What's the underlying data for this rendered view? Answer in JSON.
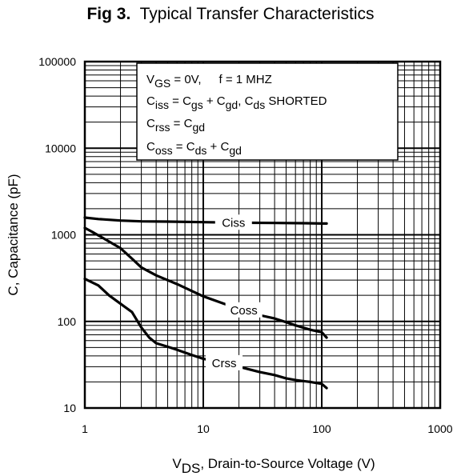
{
  "title_prefix": "Fig 3.",
  "title_text": "Typical Transfer Characteristics",
  "chart_data": {
    "type": "line",
    "x_scale": "log",
    "y_scale": "log",
    "xlim": [
      1,
      1000
    ],
    "ylim": [
      10,
      100000
    ],
    "x_ticks": [
      "1",
      "10",
      "100",
      "1000"
    ],
    "y_ticks": [
      "10",
      "100",
      "1000",
      "10000",
      "100000"
    ],
    "xlabel": {
      "pre": "V",
      "sub": "DS",
      "post": ", Drain-to-Source Voltage (V)"
    },
    "ylabel": "C, Capacitance (pF)",
    "grid": true,
    "legend_box": [
      [
        [
          "V",
          "n"
        ],
        [
          "GS",
          "s"
        ],
        [
          " = 0V,",
          "n"
        ],
        [
          "f = 1 MHZ",
          "n"
        ]
      ],
      [
        [
          "C",
          "n"
        ],
        [
          "iss",
          "s"
        ],
        [
          " = C",
          "n"
        ],
        [
          "gs",
          "s"
        ],
        [
          " + C",
          "n"
        ],
        [
          "gd",
          "s"
        ],
        [
          ", ",
          "n"
        ],
        [
          "C",
          "n"
        ],
        [
          "ds",
          "s"
        ],
        [
          " SHORTED",
          "n"
        ]
      ],
      [
        [
          "C",
          "n"
        ],
        [
          "rss",
          "s"
        ],
        [
          " = C",
          "n"
        ],
        [
          "gd",
          "s"
        ]
      ],
      [
        [
          "C",
          "n"
        ],
        [
          "oss",
          "s"
        ],
        [
          " = C",
          "n"
        ],
        [
          "ds",
          "s"
        ],
        [
          " + C",
          "n"
        ],
        [
          "gd",
          "s"
        ]
      ]
    ],
    "series": [
      {
        "name": "Ciss",
        "x": [
          1,
          1.3,
          2,
          3,
          5,
          10,
          20,
          40,
          70,
          100,
          110
        ],
        "y": [
          1580,
          1520,
          1460,
          1430,
          1420,
          1400,
          1380,
          1370,
          1360,
          1350,
          1350
        ]
      },
      {
        "name": "Coss",
        "x": [
          1,
          1.2,
          1.5,
          2,
          2.5,
          3,
          4,
          6,
          10,
          15,
          20,
          30,
          40,
          50,
          60,
          80,
          100,
          110
        ],
        "y": [
          1200,
          1050,
          880,
          700,
          530,
          420,
          340,
          270,
          195,
          160,
          140,
          118,
          108,
          98,
          90,
          80,
          75,
          65
        ]
      },
      {
        "name": "Crss",
        "x": [
          1,
          1.3,
          1.6,
          2,
          2.5,
          3,
          3.5,
          4,
          5,
          6,
          8,
          10,
          15,
          20,
          30,
          40,
          50,
          60,
          80,
          100,
          110
        ],
        "y": [
          310,
          260,
          200,
          160,
          128,
          85,
          65,
          56,
          51,
          47,
          41,
          37,
          33,
          30,
          26,
          24,
          22,
          21,
          20,
          19,
          17
        ]
      }
    ]
  }
}
